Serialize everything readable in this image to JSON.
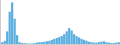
{
  "chart_data": {
    "type": "bar",
    "categories": [
      null,
      null,
      null,
      null,
      null,
      null,
      null,
      null,
      null,
      null,
      null,
      null,
      null,
      null,
      null,
      null,
      null,
      null,
      null,
      null,
      null,
      null,
      null,
      null,
      null,
      null,
      null,
      null,
      null,
      null,
      null,
      null,
      null,
      null,
      null,
      null,
      null,
      null,
      null,
      null,
      null,
      null,
      null,
      null,
      null,
      null,
      null,
      null
    ],
    "values": [
      5,
      8,
      28,
      70,
      90,
      55,
      20,
      5,
      3,
      3,
      2,
      2,
      2,
      3,
      4,
      5,
      5,
      6,
      7,
      8,
      10,
      12,
      14,
      16,
      18,
      22,
      28,
      35,
      30,
      22,
      18,
      15,
      12,
      10,
      8,
      6,
      5,
      4,
      4,
      5,
      6,
      7,
      5,
      4,
      3,
      3,
      4,
      5
    ],
    "color": "#5baee0",
    "ylim": [
      0,
      95
    ],
    "tick_labels": false
  }
}
